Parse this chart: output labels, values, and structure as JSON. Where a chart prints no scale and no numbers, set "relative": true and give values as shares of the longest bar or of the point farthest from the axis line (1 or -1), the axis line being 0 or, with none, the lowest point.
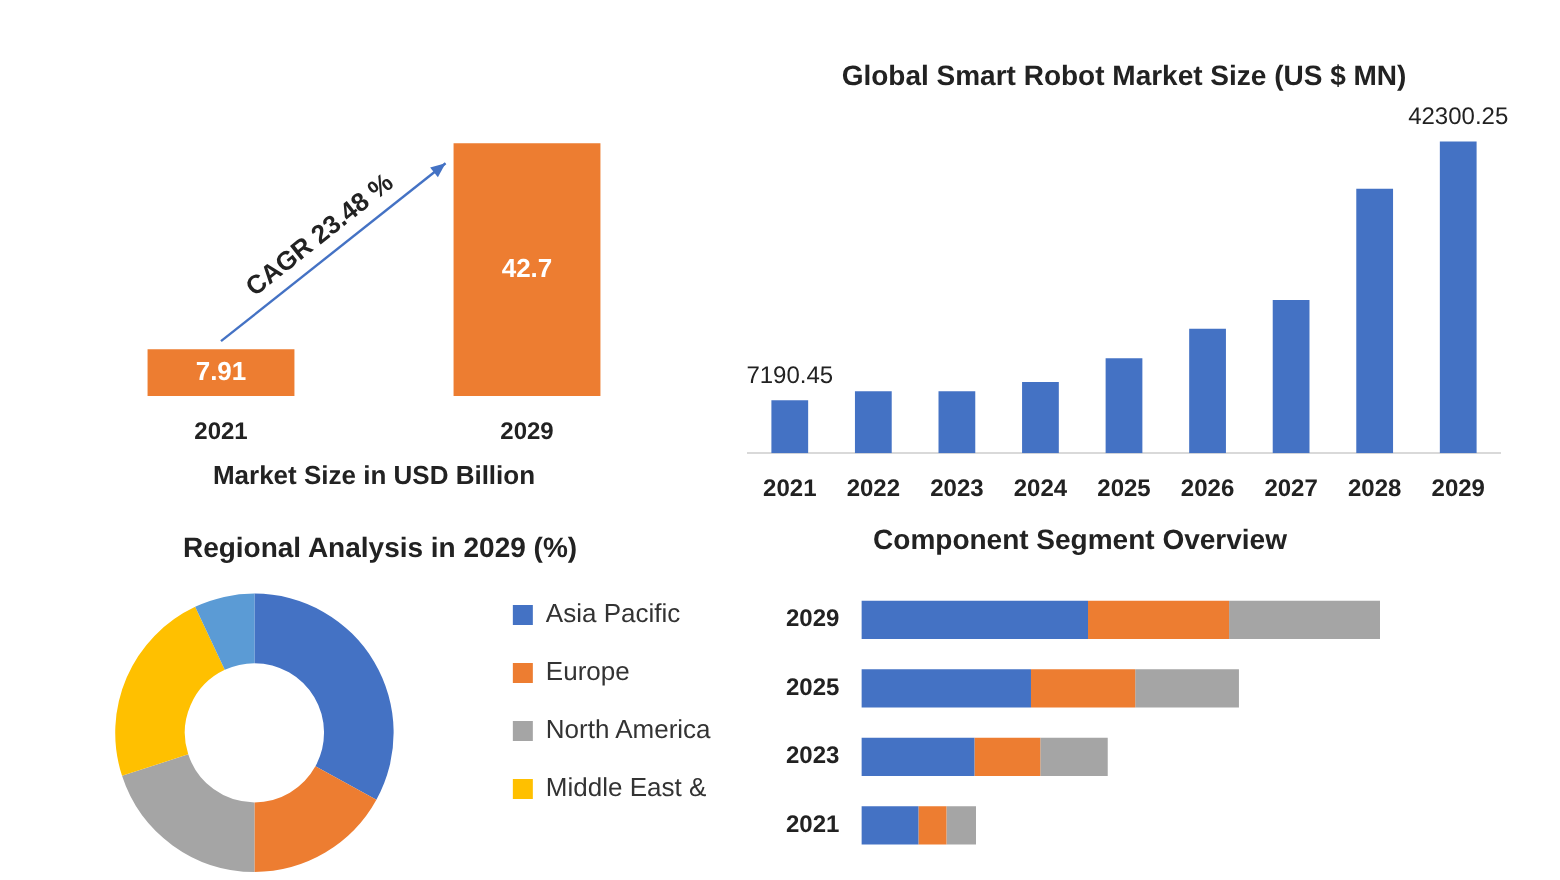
{
  "chart_data": [
    {
      "type": "bar",
      "categories": [
        "2021",
        "2029"
      ],
      "values": [
        7.91,
        42.7
      ],
      "color": "#ed7d31",
      "data_labels": true,
      "xlabel": "Market Size in USD Billion",
      "annotations": [
        "CAGR 23.48 %"
      ],
      "tick_labels": "x",
      "grid": false,
      "legend": false
    },
    {
      "type": "bar",
      "title": "Global Smart Robot Market Size (US $ MN)",
      "categories": [
        "2021",
        "2022",
        "2023",
        "2024",
        "2025",
        "2026",
        "2027",
        "2028",
        "2029"
      ],
      "values": [
        7190.45,
        8400,
        8400,
        9650,
        12900,
        16900,
        20800,
        35900,
        42300.25
      ],
      "value_labels": [
        "7190.45",
        null,
        null,
        null,
        null,
        null,
        null,
        null,
        "42300.25"
      ],
      "color": "#4472c4",
      "tick_labels": "x",
      "grid": false,
      "legend": false
    },
    {
      "type": "donut",
      "title": "Regional Analysis in 2029 (%)",
      "categories": [
        "Asia Pacific",
        "Europe",
        "North America",
        "Middle East &",
        null
      ],
      "values": [
        33,
        17,
        20,
        23,
        7
      ],
      "colors": [
        "#4472c4",
        "#ed7d31",
        "#a5a5a5",
        "#ffc000",
        "#5b9bd5"
      ],
      "legend": "right"
    },
    {
      "type": "bar",
      "title": "Component Segment Overview",
      "orientation": "horizontal",
      "stacked": true,
      "relative": true,
      "categories": [
        "2029",
        "2025",
        "2023",
        "2021"
      ],
      "tick_labels": "y",
      "grid": false,
      "legend": false,
      "series": [
        {
          "color": "#4472c4",
          "values": [
            0.437,
            0.327,
            0.218,
            0.11
          ]
        },
        {
          "color": "#ed7d31",
          "values": [
            0.272,
            0.201,
            0.127,
            0.054
          ]
        },
        {
          "color": "#a5a5a5",
          "values": [
            0.291,
            0.2,
            0.13,
            0.057
          ]
        }
      ]
    }
  ]
}
